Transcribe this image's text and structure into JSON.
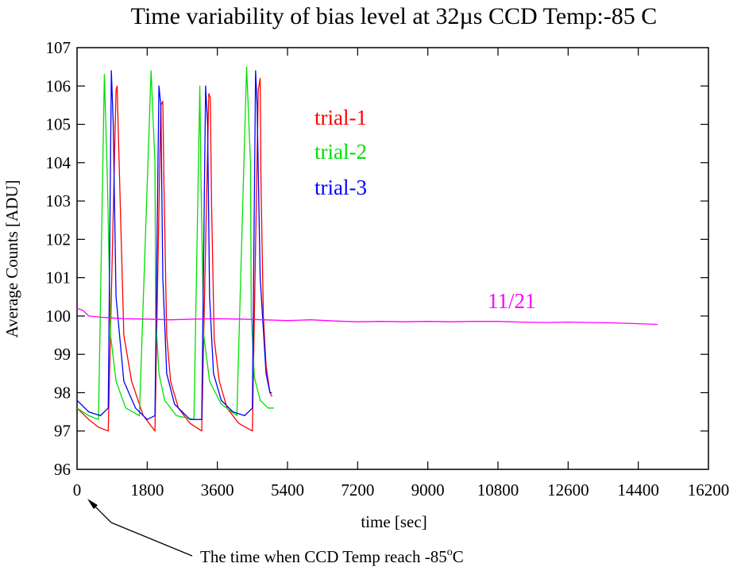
{
  "chart_data": {
    "type": "line",
    "title": "Time variability of bias level at 32µs  CCD Temp:-85 C",
    "xlabel": "time [sec]",
    "ylabel": "Average Counts [ADU]",
    "xlim": [
      0,
      16200
    ],
    "ylim": [
      96,
      107
    ],
    "x_ticks": [
      "0",
      "1800",
      "3600",
      "5400",
      "7200",
      "9000",
      "10800",
      "12600",
      "14400",
      "16200"
    ],
    "y_ticks": [
      "96",
      "97",
      "98",
      "99",
      "100",
      "101",
      "102",
      "103",
      "104",
      "105",
      "106",
      "107"
    ],
    "grid": false,
    "legend": [
      {
        "label": "trial-1",
        "color": "#ff0000"
      },
      {
        "label": "trial-2",
        "color": "#00e000"
      },
      {
        "label": "trial-3",
        "color": "#0000ff"
      }
    ],
    "series": [
      {
        "name": "trial-1",
        "color": "#ff0000",
        "x": [
          0,
          300,
          550,
          800,
          1000,
          1030,
          1080,
          1200,
          1400,
          1700,
          2000,
          2150,
          2200,
          2230,
          2300,
          2400,
          2600,
          2900,
          3200,
          3380,
          3420,
          3450,
          3520,
          3650,
          3850,
          4150,
          4500,
          4650,
          4700,
          4720,
          4780,
          4850,
          4950,
          5000
        ],
        "y": [
          97.6,
          97.3,
          97.1,
          97.0,
          105.9,
          106.0,
          104.0,
          99.5,
          98.3,
          97.4,
          97.0,
          105.5,
          105.6,
          103.5,
          99.5,
          98.3,
          97.6,
          97.2,
          97.0,
          105.8,
          105.7,
          103.0,
          99.4,
          98.3,
          97.6,
          97.2,
          97.0,
          105.9,
          106.2,
          103.5,
          100.0,
          98.7,
          98.0,
          97.9
        ]
      },
      {
        "name": "trial-2",
        "color": "#00e000",
        "x": [
          0,
          300,
          550,
          700,
          780,
          860,
          1000,
          1250,
          1600,
          1900,
          2000,
          2020,
          2100,
          2250,
          2550,
          3000,
          3150,
          3180,
          3250,
          3400,
          3700,
          4100,
          4350,
          4450,
          4470,
          4550,
          4700,
          4900,
          5050
        ],
        "y": [
          97.6,
          97.4,
          97.3,
          106.3,
          103.5,
          99.5,
          98.3,
          97.6,
          97.4,
          106.4,
          104.0,
          100.0,
          98.5,
          97.8,
          97.4,
          97.3,
          106.0,
          103.5,
          99.5,
          98.3,
          97.7,
          97.4,
          106.5,
          104.0,
          100.0,
          98.4,
          97.8,
          97.6,
          97.6
        ]
      },
      {
        "name": "trial-3",
        "color": "#0000ff",
        "x": [
          0,
          300,
          600,
          800,
          880,
          930,
          1000,
          1200,
          1500,
          1800,
          2000,
          2100,
          2150,
          2200,
          2300,
          2500,
          2900,
          3200,
          3300,
          3350,
          3400,
          3500,
          3700,
          4000,
          4300,
          4500,
          4580,
          4620,
          4700,
          4850,
          4950,
          5000
        ],
        "y": [
          97.8,
          97.5,
          97.4,
          97.6,
          106.4,
          105.0,
          100.5,
          98.3,
          97.6,
          97.3,
          97.4,
          106.0,
          105.5,
          101.0,
          98.5,
          97.7,
          97.3,
          97.3,
          106.0,
          105.0,
          100.5,
          98.5,
          97.8,
          97.5,
          97.4,
          97.6,
          106.4,
          105.5,
          101.0,
          98.5,
          98.0,
          98.0
        ]
      },
      {
        "name": "11/21",
        "color": "#ff00ff",
        "x": [
          0,
          150,
          300,
          600,
          1200,
          1800,
          2400,
          3000,
          3600,
          4200,
          4800,
          5400,
          6000,
          6600,
          7200,
          7800,
          8400,
          9000,
          9600,
          10200,
          10800,
          11400,
          12000,
          12600,
          13200,
          13800,
          14400,
          14900
        ],
        "y": [
          100.2,
          100.15,
          100.0,
          99.97,
          99.93,
          99.92,
          99.9,
          99.92,
          99.93,
          99.92,
          99.9,
          99.88,
          99.9,
          99.87,
          99.85,
          99.86,
          99.85,
          99.86,
          99.85,
          99.86,
          99.86,
          99.84,
          99.83,
          99.84,
          99.83,
          99.82,
          99.8,
          99.78
        ]
      }
    ],
    "annotations": [
      {
        "label": "11/21",
        "color": "#ff00ff"
      },
      {
        "label": "The time when CCD Temp reach -85",
        "superscript": "o",
        "suffix": "C"
      }
    ]
  }
}
